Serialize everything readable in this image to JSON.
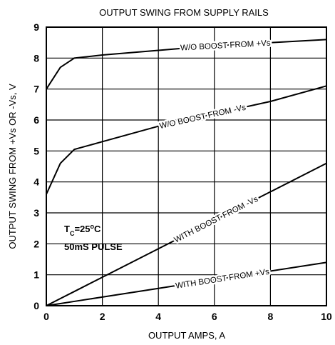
{
  "chart_data": {
    "type": "line",
    "title": "OUTPUT SWING FROM SUPPLY RAILS",
    "x_label": "OUTPUT AMPS, A",
    "y_label": "OUTPUT SWING FROM +Vs OR -Vs, V",
    "x": [
      0,
      0.5,
      1,
      2,
      4,
      6,
      8,
      10
    ],
    "series": [
      {
        "name": "W/O BOOST FROM +Vs",
        "color": "#000000",
        "values": [
          7,
          7.7,
          8,
          8.1,
          8.25,
          8.4,
          8.5,
          8.6
        ]
      },
      {
        "name": "W/O BOOST FROM -Vs",
        "color": "#000000",
        "values": [
          3.6,
          4.6,
          5.05,
          5.3,
          5.8,
          6.2,
          6.6,
          7.1
        ]
      },
      {
        "name": "WITH BOOST FROM -Vs",
        "color": "#000000",
        "values": [
          0,
          0.23,
          0.46,
          0.92,
          1.84,
          2.76,
          3.68,
          4.6
        ]
      },
      {
        "name": "WITH BOOST FROM +Vs",
        "color": "#000000",
        "values": [
          0,
          0.07,
          0.14,
          0.28,
          0.56,
          0.84,
          1.12,
          1.4
        ]
      }
    ],
    "annotation_lines": [
      [
        "T",
        "C",
        "=25",
        "o",
        "C"
      ],
      "50mS PULSE"
    ],
    "xlim": [
      0,
      10
    ],
    "xticks": [
      0,
      2,
      4,
      6,
      8,
      10
    ],
    "ylim": [
      0,
      9
    ],
    "yticks": [
      0,
      1,
      2,
      3,
      4,
      5,
      6,
      7,
      8,
      9
    ],
    "grid": true
  }
}
